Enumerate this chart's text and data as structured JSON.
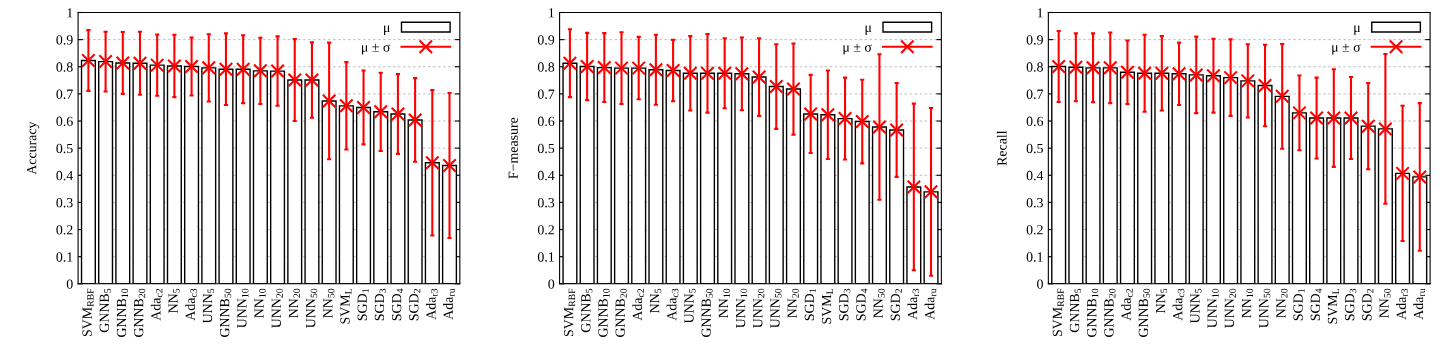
{
  "chart_data": [
    {
      "type": "bar",
      "ylabel": "Accuracy",
      "ylim": [
        0,
        1
      ],
      "yticks": [
        0,
        0.1,
        0.2,
        0.3,
        0.4,
        0.5,
        0.6,
        0.7,
        0.8,
        0.9,
        1
      ],
      "grid": "y",
      "legend": "top right",
      "marker": "cross",
      "categories": [
        "SVM$_{RBF}$",
        "GNNB$_{5}$",
        "GNNB$_{10}$",
        "GNNB$_{20}$",
        "Ada$_{c2}$",
        "NN$_{5}$",
        "Ada$_{c3}$",
        "UNN$_{5}$",
        "GNNB$_{50}$",
        "UNN$_{10}$",
        "NN$_{10}$",
        "UNN$_{20}$",
        "NN$_{20}$",
        "UNN$_{50}$",
        "NN$_{50}$",
        "SVM$_{L}$",
        "SGD$_{1}$",
        "SGD$_{3}$",
        "SGD$_{4}$",
        "SGD$_{2}$",
        "Ada$_{r3}$",
        "Ada$_{ru}$"
      ],
      "series": [
        {
          "name": "μ",
          "color": "#ffffff",
          "values": [
            0.823,
            0.819,
            0.814,
            0.813,
            0.806,
            0.803,
            0.801,
            0.796,
            0.791,
            0.791,
            0.785,
            0.784,
            0.751,
            0.751,
            0.674,
            0.656,
            0.65,
            0.634,
            0.626,
            0.604,
            0.446,
            0.436
          ]
        },
        {
          "name": "μ ± σ",
          "type": "scatter",
          "color": "#ff0000",
          "values": [
            0.823,
            0.819,
            0.814,
            0.813,
            0.806,
            0.803,
            0.801,
            0.796,
            0.791,
            0.791,
            0.785,
            0.784,
            0.751,
            0.751,
            0.674,
            0.656,
            0.65,
            0.634,
            0.626,
            0.604,
            0.446,
            0.436
          ],
          "errors": [
            0.112,
            0.11,
            0.114,
            0.116,
            0.113,
            0.115,
            0.107,
            0.124,
            0.132,
            0.125,
            0.122,
            0.128,
            0.151,
            0.139,
            0.215,
            0.161,
            0.136,
            0.144,
            0.147,
            0.154,
            0.268,
            0.267
          ]
        }
      ]
    },
    {
      "type": "bar",
      "ylabel": "F−measure",
      "ylim": [
        0,
        1
      ],
      "yticks": [
        0,
        0.1,
        0.2,
        0.3,
        0.4,
        0.5,
        0.6,
        0.7,
        0.8,
        0.9,
        1
      ],
      "grid": "y",
      "legend": "top right",
      "marker": "cross",
      "categories": [
        "SVM$_{RBF}$",
        "GNNB$_{5}$",
        "GNNB$_{10}$",
        "GNNB$_{20}$",
        "Ada$_{c2}$",
        "NN$_{5}$",
        "Ada$_{c3}$",
        "UNN$_{5}$",
        "GNNB$_{50}$",
        "NN$_{10}$",
        "UNN$_{10}$",
        "UNN$_{20}$",
        "UNN$_{50}$",
        "NN$_{20}$",
        "SGD$_{1}$",
        "SVM$_{L}$",
        "SGD$_{3}$",
        "SGD$_{4}$",
        "NN$_{50}$",
        "SGD$_{2}$",
        "Ada$_{r3}$",
        "Ada$_{ru}$"
      ],
      "series": [
        {
          "name": "μ",
          "color": "#ffffff",
          "values": [
            0.813,
            0.801,
            0.797,
            0.795,
            0.795,
            0.789,
            0.786,
            0.776,
            0.776,
            0.776,
            0.774,
            0.762,
            0.727,
            0.718,
            0.626,
            0.623,
            0.609,
            0.598,
            0.578,
            0.567,
            0.357,
            0.339
          ]
        },
        {
          "name": "μ ± σ",
          "type": "scatter",
          "color": "#ff0000",
          "values": [
            0.813,
            0.801,
            0.797,
            0.795,
            0.795,
            0.789,
            0.786,
            0.776,
            0.776,
            0.776,
            0.774,
            0.762,
            0.727,
            0.718,
            0.626,
            0.623,
            0.609,
            0.598,
            0.578,
            0.567,
            0.357,
            0.339
          ],
          "errors": [
            0.125,
            0.124,
            0.127,
            0.132,
            0.115,
            0.129,
            0.113,
            0.137,
            0.145,
            0.129,
            0.134,
            0.143,
            0.156,
            0.168,
            0.144,
            0.163,
            0.151,
            0.154,
            0.268,
            0.173,
            0.307,
            0.309
          ]
        }
      ]
    },
    {
      "type": "bar",
      "ylabel": "Recall",
      "ylim": [
        0,
        1
      ],
      "yticks": [
        0,
        0.1,
        0.2,
        0.3,
        0.4,
        0.5,
        0.6,
        0.7,
        0.8,
        0.9,
        1
      ],
      "grid": "y",
      "legend": "top right",
      "marker": "cross",
      "categories": [
        "SVM$_{RBF}$",
        "GNNB$_{5}$",
        "GNNB$_{10}$",
        "GNNB$_{20}$",
        "Ada$_{c2}$",
        "GNNB$_{50}$",
        "NN$_{5}$",
        "Ada$_{c3}$",
        "UNN$_{5}$",
        "UNN$_{10}$",
        "UNN$_{20}$",
        "NN$_{10}$",
        "UNN$_{50}$",
        "NN$_{20}$",
        "SGD$_{1}$",
        "SGD$_{4}$",
        "SVM$_{L}$",
        "SGD$_{3}$",
        "SGD$_{2}$",
        "NN$_{50}$",
        "Ada$_{r3}$",
        "Ada$_{ru}$"
      ],
      "series": [
        {
          "name": "μ",
          "color": "#ffffff",
          "values": [
            0.801,
            0.798,
            0.796,
            0.796,
            0.78,
            0.776,
            0.776,
            0.774,
            0.77,
            0.767,
            0.76,
            0.748,
            0.731,
            0.691,
            0.63,
            0.611,
            0.611,
            0.611,
            0.581,
            0.571,
            0.407,
            0.394
          ]
        },
        {
          "name": "μ ± σ",
          "type": "scatter",
          "color": "#ff0000",
          "values": [
            0.801,
            0.798,
            0.796,
            0.796,
            0.78,
            0.776,
            0.776,
            0.774,
            0.77,
            0.767,
            0.76,
            0.748,
            0.731,
            0.691,
            0.63,
            0.611,
            0.611,
            0.611,
            0.581,
            0.571,
            0.407,
            0.394
          ],
          "errors": [
            0.131,
            0.125,
            0.127,
            0.13,
            0.117,
            0.142,
            0.137,
            0.115,
            0.141,
            0.136,
            0.141,
            0.135,
            0.15,
            0.193,
            0.138,
            0.149,
            0.18,
            0.151,
            0.159,
            0.276,
            0.249,
            0.272
          ]
        }
      ]
    }
  ]
}
